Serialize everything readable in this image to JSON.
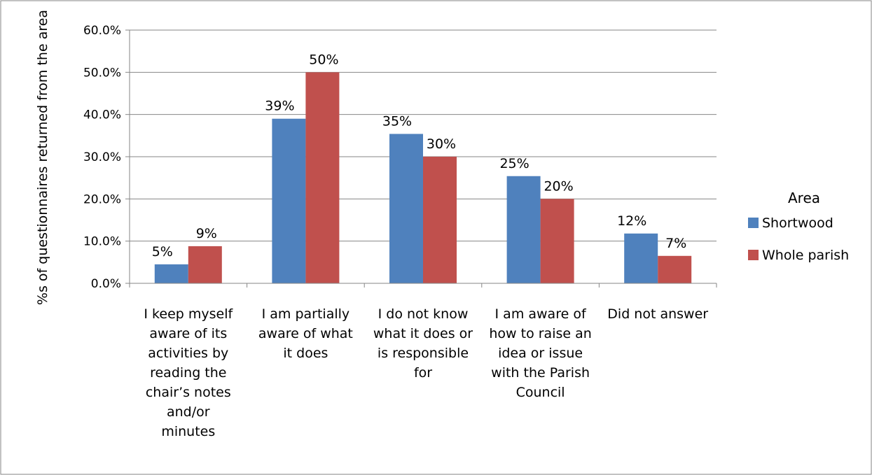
{
  "chart_data": {
    "type": "bar",
    "title": "",
    "xlabel": "",
    "ylabel": "%s of questionnaires returned from the area",
    "ylim": [
      0,
      60
    ],
    "yticks": [
      "0.0%",
      "10.0%",
      "20.0%",
      "30.0%",
      "40.0%",
      "50.0%",
      "60.0%"
    ],
    "grid": true,
    "legend_position": "right",
    "legend_title": "Area",
    "categories": [
      [
        "I keep myself",
        "aware of its",
        "activities by",
        "reading the",
        "chair’s notes",
        "and/or",
        "minutes"
      ],
      [
        "I am partially",
        "aware of what",
        "it does"
      ],
      [
        "I do not know",
        "what it does or",
        "is responsible",
        "for"
      ],
      [
        "I am aware of",
        "how to raise an",
        "idea or issue",
        "with the Parish",
        "Council"
      ],
      [
        "Did not answer"
      ]
    ],
    "series": [
      {
        "name": "Shortwood",
        "color": "#4f81bd",
        "values": [
          4.5,
          39,
          35.4,
          25.4,
          11.8
        ],
        "labels": [
          "5%",
          "39%",
          "35%",
          "25%",
          "12%"
        ]
      },
      {
        "name": "Whole parish",
        "color": "#c0504d",
        "values": [
          8.8,
          50,
          30,
          20,
          6.5
        ],
        "labels": [
          "9%",
          "50%",
          "30%",
          "20%",
          "7%"
        ]
      }
    ]
  }
}
